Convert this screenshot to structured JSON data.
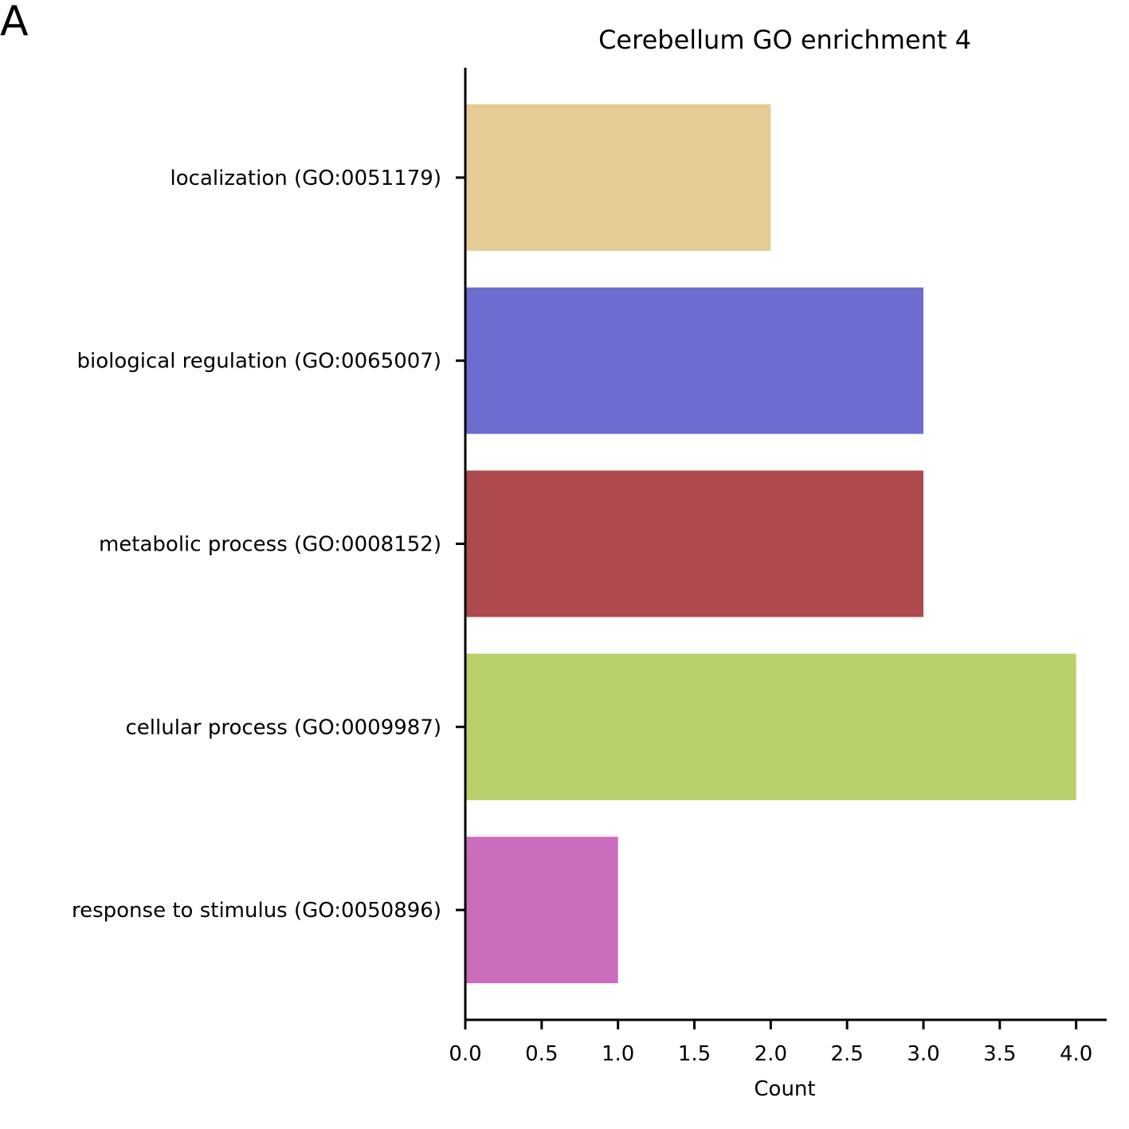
{
  "panel_label": "A",
  "chart_data": {
    "type": "bar",
    "orientation": "horizontal",
    "title": "Cerebellum GO enrichment 4",
    "xlabel": "Count",
    "ylabel": "",
    "xlim": [
      0,
      4.2
    ],
    "xticks": [
      "0.0",
      "0.5",
      "1.0",
      "1.5",
      "2.0",
      "2.5",
      "3.0",
      "3.5",
      "4.0"
    ],
    "grid": false,
    "categories": [
      "localization (GO:0051179)",
      "biological regulation (GO:0065007)",
      "metabolic process (GO:0008152)",
      "cellular process (GO:0009987)",
      "response to stimulus (GO:0050896)"
    ],
    "values": [
      2,
      3,
      3,
      4,
      1
    ],
    "colors": [
      "#e5cb94",
      "#6c6dcf",
      "#ad4a4d",
      "#b7d06b",
      "#cc6cbd"
    ]
  }
}
